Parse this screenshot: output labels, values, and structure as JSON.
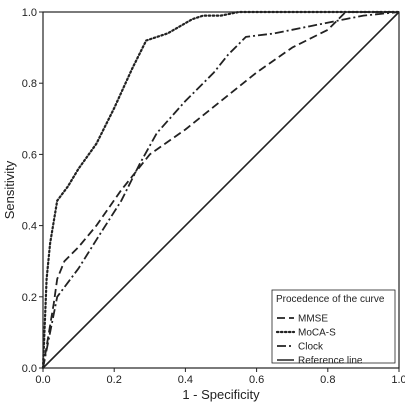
{
  "chart_data": {
    "type": "line",
    "xlabel": "1 - Specificity",
    "ylabel": "Sensitivity",
    "xlim": [
      0,
      1
    ],
    "ylim": [
      0,
      1
    ],
    "x_ticks": [
      "0.0",
      "0.2",
      "0.4",
      "0.6",
      "0.8",
      "1.0"
    ],
    "y_ticks": [
      "0.0",
      "0.2",
      "0.4",
      "0.6",
      "0.8",
      "1.0"
    ],
    "grid": false,
    "legend": {
      "title": "Procedence of the curve",
      "placement": "bottom-right"
    },
    "series": [
      {
        "name": "MMSE",
        "style": "dashed",
        "color": "#222222",
        "x": [
          0,
          0.03,
          0.04,
          0.06,
          0.1,
          0.15,
          0.22,
          0.3,
          0.4,
          0.5,
          0.6,
          0.7,
          0.8,
          0.85,
          0.95,
          1.0
        ],
        "y": [
          0,
          0.18,
          0.25,
          0.3,
          0.34,
          0.4,
          0.5,
          0.6,
          0.67,
          0.75,
          0.83,
          0.9,
          0.95,
          1.0,
          1.0,
          1.0
        ]
      },
      {
        "name": "MoCA-S",
        "style": "dotted",
        "color": "#222222",
        "x": [
          0,
          0.01,
          0.02,
          0.04,
          0.07,
          0.1,
          0.15,
          0.2,
          0.25,
          0.29,
          0.35,
          0.42,
          0.45,
          0.5,
          0.55,
          0.6,
          0.7,
          0.8,
          0.9,
          1.0
        ],
        "y": [
          0,
          0.25,
          0.35,
          0.47,
          0.51,
          0.56,
          0.63,
          0.73,
          0.84,
          0.92,
          0.94,
          0.98,
          0.99,
          0.99,
          1.0,
          1.0,
          1.0,
          1.0,
          1.0,
          1.0
        ]
      },
      {
        "name": "Clock",
        "style": "dashdot",
        "color": "#222222",
        "x": [
          0,
          0.04,
          0.1,
          0.15,
          0.22,
          0.27,
          0.32,
          0.4,
          0.48,
          0.52,
          0.57,
          0.65,
          0.75,
          0.85,
          0.9,
          1.0
        ],
        "y": [
          0,
          0.2,
          0.28,
          0.36,
          0.47,
          0.57,
          0.66,
          0.75,
          0.83,
          0.88,
          0.93,
          0.94,
          0.96,
          0.98,
          0.99,
          1.0
        ]
      },
      {
        "name": "Reference line",
        "style": "solid",
        "color": "#222222",
        "x": [
          0,
          1
        ],
        "y": [
          0,
          1
        ]
      }
    ]
  }
}
